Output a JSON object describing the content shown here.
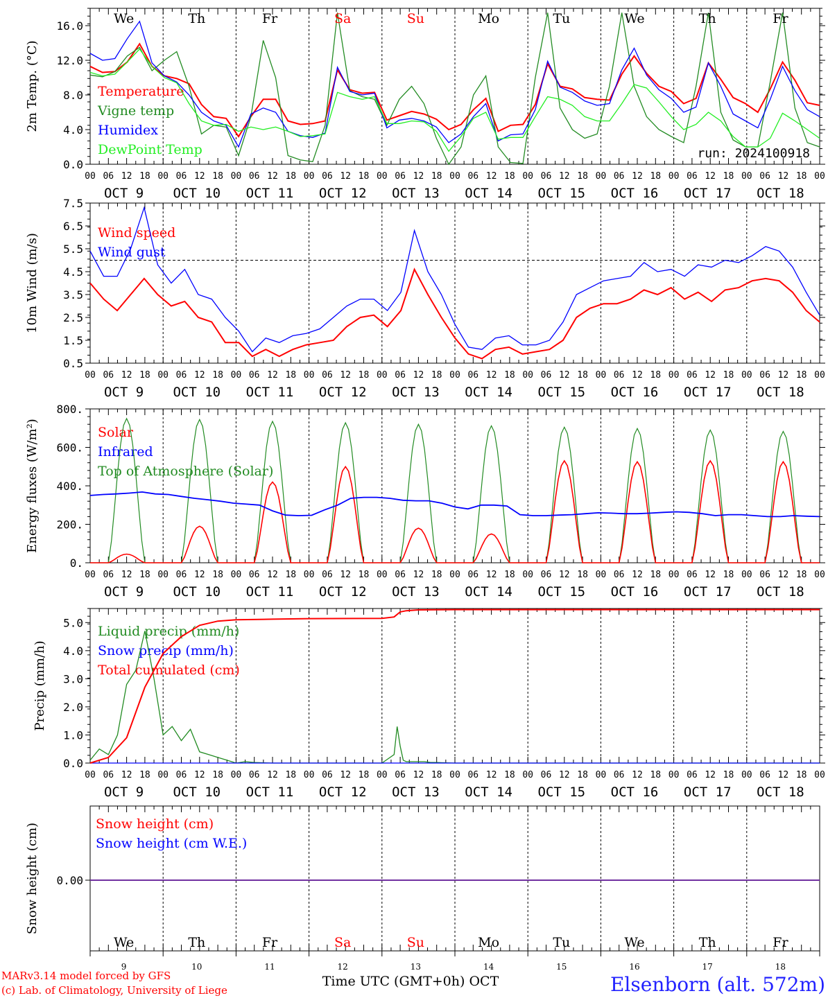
{
  "days": [
    "OCT  9",
    "OCT 10",
    "OCT 11",
    "OCT 12",
    "OCT 13",
    "OCT 14",
    "OCT 15",
    "OCT 16",
    "OCT 17",
    "OCT 18"
  ],
  "hour_ticks": [
    "00",
    "06",
    "12",
    "18"
  ],
  "end_hour_tick": "00",
  "weekdays": [
    {
      "name": "We",
      "color": "#000000"
    },
    {
      "name": "Th",
      "color": "#000000"
    },
    {
      "name": "Fr",
      "color": "#000000"
    },
    {
      "name": "Sa",
      "color": "#ff0000"
    },
    {
      "name": "Su",
      "color": "#ff0000"
    },
    {
      "name": "Mo",
      "color": "#000000"
    },
    {
      "name": "Tu",
      "color": "#000000"
    },
    {
      "name": "We",
      "color": "#000000"
    },
    {
      "name": "Th",
      "color": "#000000"
    },
    {
      "name": "Fr",
      "color": "#000000"
    }
  ],
  "day_numbers": [
    "9",
    "10",
    "11",
    "12",
    "13",
    "14",
    "15",
    "16",
    "17",
    "18"
  ],
  "footer": {
    "model": "MARv3.14 model forced by GFS",
    "credit": "(c) Lab. of Climatology, University of Liege",
    "xlabel": "Time UTC (GMT+0h) OCT",
    "station": "Elsenborn (alt. 572m)"
  },
  "colors": {
    "red": "#ff0000",
    "green": "#228b22",
    "blue": "#0000ff",
    "lightgreen": "#22ee22",
    "purple": "#7030a0"
  },
  "chart_data": [
    {
      "type": "line",
      "ylabel": "2m Temp. (°C)",
      "ylim": [
        0,
        18
      ],
      "yticks": [
        0,
        4,
        8,
        12,
        16
      ],
      "ytick_labels": [
        "0.0",
        "4.0",
        "8.0",
        "12.0",
        "16.0"
      ],
      "run_label": "run: 2024100918",
      "x_start_hour": 0,
      "x_step_hours": 6,
      "series": [
        {
          "name": "Temperature",
          "color": "#ff0000",
          "values": [
            11.3,
            10.6,
            10.7,
            11.8,
            13.9,
            11.3,
            10.2,
            9.9,
            9.3,
            6.9,
            5.5,
            5.3,
            3.2,
            5.5,
            7.5,
            7.5,
            5.0,
            4.6,
            4.7,
            5.0,
            10.9,
            8.6,
            8.2,
            8.3,
            5.1,
            5.6,
            6.1,
            5.8,
            5.2,
            4.0,
            4.6,
            6.3,
            7.6,
            3.8,
            4.5,
            4.6,
            6.9,
            11.6,
            9.0,
            8.7,
            7.7,
            7.5,
            7.4,
            10.4,
            12.5,
            10.5,
            9.0,
            8.4,
            7.0,
            7.6,
            11.7,
            9.8,
            7.7,
            7.0,
            6.0,
            8.7,
            11.8,
            9.7,
            7.1,
            6.8
          ]
        },
        {
          "name": "Vigne temp",
          "color": "#228b22",
          "values": [
            10.3,
            10.1,
            10.7,
            12.5,
            13.5,
            10.8,
            12.0,
            13.0,
            9.0,
            3.5,
            4.5,
            4.3,
            1.0,
            5.5,
            14.3,
            10.0,
            1.0,
            0.5,
            0.3,
            4.5,
            17.5,
            8.5,
            7.8,
            7.5,
            4.5,
            7.5,
            9.0,
            7.0,
            3.0,
            0.0,
            2.0,
            8.0,
            10.2,
            2.0,
            0.2,
            0.1,
            10.0,
            17.5,
            6.5,
            4.0,
            3.0,
            3.5,
            9.0,
            17.5,
            9.0,
            5.5,
            4.0,
            3.2,
            2.5,
            9.0,
            17.5,
            6.0,
            2.8,
            2.0,
            2.0,
            9.5,
            17.5,
            6.5,
            2.5,
            2.0
          ]
        },
        {
          "name": "Humidex",
          "color": "#0000ff",
          "values": [
            12.8,
            12.0,
            12.2,
            14.5,
            16.5,
            11.7,
            10.2,
            9.5,
            8.0,
            6.0,
            5.0,
            4.5,
            2.0,
            5.8,
            6.5,
            6.0,
            3.8,
            3.3,
            3.1,
            3.6,
            11.2,
            8.4,
            8.0,
            8.2,
            4.2,
            5.1,
            5.3,
            5.0,
            4.3,
            2.5,
            3.5,
            5.5,
            7.0,
            2.7,
            3.4,
            3.5,
            6.3,
            11.9,
            8.9,
            8.3,
            7.3,
            6.8,
            7.0,
            10.9,
            13.4,
            10.3,
            8.6,
            7.6,
            6.0,
            6.6,
            11.7,
            9.0,
            5.8,
            5.0,
            4.2,
            7.5,
            11.3,
            8.5,
            6.3,
            5.5
          ]
        },
        {
          "name": "DewPoint Temp",
          "color": "#22ee22",
          "values": [
            10.6,
            10.2,
            10.4,
            11.8,
            13.3,
            11.3,
            10.0,
            9.4,
            7.0,
            5.0,
            4.5,
            4.6,
            3.8,
            4.3,
            4.0,
            4.3,
            3.8,
            3.2,
            3.3,
            3.5,
            8.3,
            7.8,
            7.5,
            7.8,
            4.7,
            4.7,
            5.0,
            4.9,
            3.8,
            1.5,
            3.2,
            5.3,
            6.0,
            2.9,
            3.1,
            3.1,
            5.5,
            7.8,
            7.5,
            6.8,
            5.5,
            5.0,
            5.0,
            7.0,
            9.2,
            8.8,
            7.2,
            5.5,
            4.0,
            4.6,
            6.0,
            5.0,
            3.2,
            2.0,
            2.0,
            3.0,
            5.9,
            5.0,
            4.0,
            3.0
          ]
        }
      ]
    },
    {
      "type": "line",
      "ylabel": "10m Wind (m/s)",
      "ylim": [
        0.5,
        7.5
      ],
      "yticks": [
        0.5,
        1.5,
        2.5,
        3.5,
        4.5,
        5.5,
        6.5,
        7.5
      ],
      "ytick_labels": [
        "0.5",
        "1.5",
        "2.5",
        "3.5",
        "4.5",
        "5.5",
        "6.5",
        "7.5"
      ],
      "reference_line": 5.0,
      "x_start_hour": 0,
      "x_step_hours": 6,
      "series": [
        {
          "name": "Wind speed",
          "color": "#ff0000",
          "values": [
            4.0,
            3.3,
            2.8,
            3.5,
            4.2,
            3.5,
            3.0,
            3.2,
            2.5,
            2.3,
            1.4,
            1.4,
            0.8,
            1.1,
            0.8,
            1.1,
            1.3,
            1.4,
            1.5,
            2.1,
            2.5,
            2.6,
            2.1,
            2.8,
            4.6,
            3.5,
            2.5,
            1.6,
            0.9,
            0.7,
            1.1,
            1.2,
            0.9,
            1.0,
            1.1,
            1.5,
            2.5,
            2.9,
            3.1,
            3.1,
            3.3,
            3.7,
            3.5,
            3.8,
            3.3,
            3.6,
            3.2,
            3.7,
            3.8,
            4.1,
            4.2,
            4.1,
            3.6,
            2.8,
            2.3
          ]
        },
        {
          "name": "Wind gust",
          "color": "#0000ff",
          "values": [
            5.4,
            4.3,
            4.3,
            5.5,
            7.3,
            4.8,
            4.0,
            4.6,
            3.5,
            3.3,
            2.5,
            1.9,
            1.0,
            1.6,
            1.4,
            1.7,
            1.8,
            2.0,
            2.5,
            3.0,
            3.3,
            3.3,
            2.8,
            3.6,
            6.3,
            4.5,
            3.5,
            2.2,
            1.2,
            1.1,
            1.6,
            1.7,
            1.3,
            1.3,
            1.5,
            2.3,
            3.5,
            3.8,
            4.1,
            4.2,
            4.3,
            4.9,
            4.5,
            4.6,
            4.3,
            4.8,
            4.7,
            5.0,
            4.9,
            5.2,
            5.6,
            5.4,
            4.7,
            3.6,
            2.6
          ]
        }
      ]
    },
    {
      "type": "line",
      "ylabel": "Energy fluxes (W/m²)",
      "ylim": [
        0,
        800
      ],
      "yticks": [
        0,
        200,
        400,
        600,
        800
      ],
      "ytick_labels": [
        "0.",
        "200.",
        "400.",
        "600.",
        "800."
      ],
      "series": [
        {
          "name": "Solar",
          "color": "#ff0000",
          "day_peaks": [
            45,
            190,
            420,
            500,
            180,
            150,
            530,
            525,
            530,
            525
          ]
        },
        {
          "name": "Infrared",
          "color": "#0000ff",
          "values": [
            350,
            355,
            358,
            362,
            368,
            358,
            355,
            345,
            335,
            328,
            320,
            310,
            305,
            300,
            270,
            248,
            245,
            247,
            275,
            300,
            335,
            340,
            340,
            335,
            325,
            322,
            322,
            310,
            290,
            280,
            300,
            300,
            295,
            250,
            245,
            245,
            248,
            250,
            255,
            260,
            258,
            255,
            255,
            258,
            262,
            265,
            262,
            255,
            245,
            250,
            250,
            245,
            240,
            240,
            245,
            242,
            240
          ]
        },
        {
          "name": "Top of Atmosphere (Solar)",
          "color": "#228b22",
          "day_peaks": [
            750,
            745,
            735,
            728,
            720,
            712,
            705,
            698,
            690,
            683
          ]
        }
      ]
    },
    {
      "type": "line",
      "ylabel": "Precip (mm/h)",
      "ylim": [
        0,
        5.5
      ],
      "yticks": [
        0,
        1,
        2,
        3,
        4,
        5
      ],
      "ytick_labels": [
        "0.0",
        "1.0",
        "2.0",
        "3.0",
        "4.0",
        "5.0"
      ],
      "series": [
        {
          "name": "Liquid precip (mm/h)",
          "color": "#228b22",
          "x_hours": [
            0,
            3,
            6,
            9,
            12,
            15,
            18,
            21,
            24,
            27,
            30,
            33,
            36,
            39,
            42,
            45,
            48,
            51,
            54,
            60,
            72,
            96,
            100,
            101,
            102,
            103,
            104,
            106,
            108,
            110,
            112,
            114,
            120,
            144,
            168,
            192,
            216,
            240
          ],
          "values": [
            0.1,
            0.5,
            0.3,
            1.0,
            2.8,
            3.3,
            4.7,
            3.0,
            1.0,
            1.3,
            0.8,
            1.2,
            0.4,
            0.3,
            0.2,
            0.1,
            0.0,
            0.05,
            0.02,
            0.0,
            0.0,
            0.0,
            0.3,
            1.3,
            0.6,
            0.1,
            0.05,
            0.05,
            0.05,
            0.05,
            0.02,
            0.02,
            0.0,
            0.0,
            0.0,
            0.0,
            0.0,
            0.0
          ]
        },
        {
          "name": "Snow precip (mm/h)",
          "color": "#0000ff",
          "x_hours": [
            0,
            240
          ],
          "values": [
            0,
            0
          ]
        },
        {
          "name": "Total cumulated (cm)",
          "color": "#ff0000",
          "x_hours": [
            0,
            6,
            12,
            18,
            24,
            30,
            36,
            42,
            48,
            60,
            72,
            96,
            100,
            102,
            104,
            108,
            120,
            144,
            168,
            192,
            216,
            240
          ],
          "values": [
            0.0,
            0.2,
            0.9,
            2.7,
            3.9,
            4.5,
            4.9,
            5.05,
            5.1,
            5.12,
            5.14,
            5.15,
            5.2,
            5.38,
            5.42,
            5.45,
            5.46,
            5.46,
            5.46,
            5.46,
            5.46,
            5.46
          ]
        }
      ]
    },
    {
      "type": "line",
      "ylabel": "Snow height (cm)",
      "ytick_labels": [
        "0.00"
      ],
      "series": [
        {
          "name": "Snow height (cm)",
          "color": "#ff0000",
          "values": [
            0,
            0
          ]
        },
        {
          "name": "Snow height (cm W.E.)",
          "color": "#0000ff",
          "values": [
            0,
            0
          ]
        }
      ]
    }
  ]
}
